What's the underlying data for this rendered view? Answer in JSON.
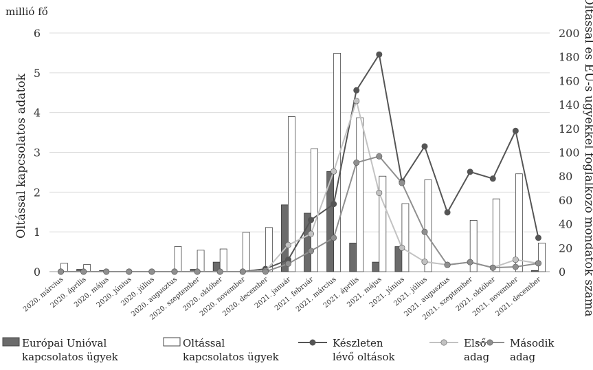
{
  "chart_data": {
    "type": "bar",
    "unit_label": "millió fő",
    "ylabel_left": "Oltással kapcsolatos adatok",
    "ylabel_right": "Oltással és EU-s ügyekkel foglalkozó mondatok száma",
    "ylim_left": [
      0,
      6
    ],
    "ylim_right": [
      0,
      200
    ],
    "yticks_left": [
      "0",
      "1",
      "2",
      "3",
      "4",
      "5",
      "6"
    ],
    "yticks_right": [
      "0",
      "20",
      "40",
      "60",
      "80",
      "100",
      "120",
      "140",
      "160",
      "180",
      "200"
    ],
    "categories": [
      "2020. március",
      "2020. április",
      "2020. május",
      "2020. június",
      "2020. július",
      "2020. augusztus",
      "2020. szeptember",
      "2020. október",
      "2020. november",
      "2020. december",
      "2021. január",
      "2021. február",
      "2021. március",
      "2021. április",
      "2021. május",
      "2021. június",
      "2021. július",
      "2021. augusztus",
      "2021. szeptember",
      "2021. október",
      "2021. november",
      "2021. december"
    ],
    "series": [
      {
        "name": "Európai Unióval kapcsolatos ügyek",
        "kind": "bar",
        "axis": "right",
        "color": "#6b6b6b",
        "values": [
          0,
          2,
          1,
          0,
          0,
          0,
          2,
          8,
          0,
          1,
          56,
          49,
          84,
          24,
          8,
          21,
          0,
          0,
          0,
          0,
          0,
          1
        ]
      },
      {
        "name": "Oltással kapcsolatos ügyek",
        "kind": "bar",
        "axis": "right",
        "color": "#ffffff",
        "values": [
          7,
          6,
          0,
          0,
          0,
          21,
          18,
          19,
          33,
          37,
          130,
          103,
          183,
          129,
          80,
          57,
          77,
          0,
          43,
          61,
          82,
          24
        ]
      },
      {
        "name": "Készleten lévő oltások",
        "kind": "line",
        "axis": "left",
        "color": "#555555",
        "values": [
          0,
          0,
          0,
          0,
          0,
          0,
          0,
          0,
          0,
          0.07,
          0.3,
          1.3,
          1.7,
          4.56,
          5.46,
          2.27,
          3.15,
          1.49,
          2.51,
          2.34,
          3.54,
          0.85
        ]
      },
      {
        "name": "Első adag",
        "kind": "line",
        "axis": "left",
        "color": "#c2c2c2",
        "values": [
          0,
          0,
          0,
          0,
          0,
          0,
          0,
          0,
          0,
          0.02,
          0.67,
          0.95,
          2.52,
          4.29,
          1.98,
          0.6,
          0.25,
          0.17,
          0.24,
          0.1,
          0.3,
          0.21
        ]
      },
      {
        "name": "Második adag",
        "kind": "line",
        "axis": "left",
        "color": "#8f8f8f",
        "values": [
          0,
          0,
          0,
          0,
          0,
          0,
          0,
          0,
          0,
          0,
          0.2,
          0.52,
          0.85,
          2.74,
          2.9,
          2.23,
          1.0,
          0.17,
          0.24,
          0.1,
          0.12,
          0.21
        ]
      }
    ],
    "legend": [
      {
        "lines": [
          "Európai Unióval",
          "kapcsolatos ügyek"
        ],
        "marker": "bar-dark"
      },
      {
        "lines": [
          "Oltással",
          "kapcsolatos ügyek"
        ],
        "marker": "bar-light"
      },
      {
        "lines": [
          "Készleten",
          "lévő oltások"
        ],
        "marker": "line-dark"
      },
      {
        "lines": [
          "Első",
          "adag"
        ],
        "marker": "line-light"
      },
      {
        "lines": [
          "Második",
          "adag"
        ],
        "marker": "line-mid"
      }
    ],
    "legend_position": "bottom",
    "grid": "horizontal"
  }
}
